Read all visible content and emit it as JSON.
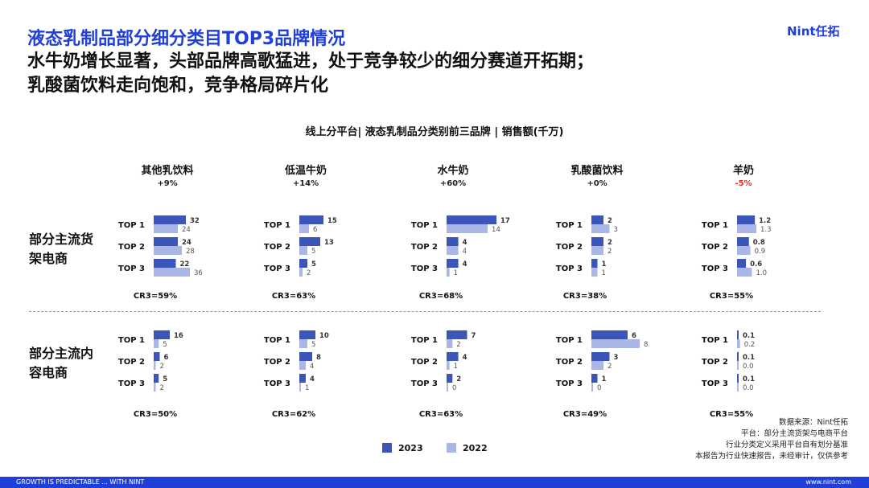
{
  "header": {
    "title": "液态乳制品部分细分类目TOP3品牌情况",
    "subtitle_line1": "水牛奶增长显著，头部品牌高歌猛进，处于竞争较少的细分赛道开拓期；",
    "subtitle_line2": "乳酸菌饮料走向饱和，竞争格局碎片化",
    "logo": "Nint任拓"
  },
  "chart_data": {
    "type": "bar",
    "title": "线上分平台| 液态乳制品分类别前三品牌 | 销售额(千万)",
    "row_labels": [
      "部分主流货架电商",
      "部分主流内容电商"
    ],
    "rank_labels": [
      "TOP 1",
      "TOP 2",
      "TOP 3"
    ],
    "legend": [
      {
        "name": "2023",
        "color": "#3b56b8"
      },
      {
        "name": "2022",
        "color": "#a9b6e6"
      }
    ],
    "categories": [
      {
        "name": "其他乳饮料",
        "growth": "+9%",
        "negative": false,
        "panels": [
          {
            "v2023": [
              32,
              24,
              22
            ],
            "v2022": [
              24,
              28,
              36
            ],
            "cr3": "CR3=59%"
          },
          {
            "v2023": [
              16,
              6,
              5
            ],
            "v2022": [
              5,
              2,
              2
            ],
            "cr3": "CR3=50%"
          }
        ]
      },
      {
        "name": "低温牛奶",
        "growth": "+14%",
        "negative": false,
        "panels": [
          {
            "v2023": [
              15,
              13,
              5
            ],
            "v2022": [
              6,
              5,
              2
            ],
            "cr3": "CR3=63%"
          },
          {
            "v2023": [
              10,
              8,
              4
            ],
            "v2022": [
              5,
              4,
              1
            ],
            "cr3": "CR3=62%"
          }
        ]
      },
      {
        "name": "水牛奶",
        "growth": "+60%",
        "negative": false,
        "panels": [
          {
            "v2023": [
              17,
              4,
              4
            ],
            "v2022": [
              14,
              4,
              1
            ],
            "cr3": "CR3=68%"
          },
          {
            "v2023": [
              7,
              4,
              2
            ],
            "v2022": [
              2,
              1,
              0
            ],
            "cr3": "CR3=63%"
          }
        ]
      },
      {
        "name": "乳酸菌饮料",
        "growth": "+0%",
        "negative": false,
        "panels": [
          {
            "v2023": [
              2,
              2,
              1
            ],
            "v2022": [
              3,
              2,
              1
            ],
            "cr3": "CR3=38%"
          },
          {
            "v2023": [
              6,
              3,
              1
            ],
            "v2022": [
              8,
              2,
              0
            ],
            "cr3": "CR3=49%"
          }
        ]
      },
      {
        "name": "羊奶",
        "growth": "-5%",
        "negative": true,
        "panels": [
          {
            "v2023": [
              1.2,
              0.8,
              0.6
            ],
            "v2022": [
              1.3,
              0.9,
              1.0
            ],
            "cr3": "CR3=55%",
            "decimals": 1
          },
          {
            "v2023": [
              0.1,
              0.1,
              0.1
            ],
            "v2022": [
              0.2,
              0.0,
              0.0
            ],
            "cr3": "CR3=55%",
            "decimals": 1
          }
        ]
      }
    ]
  },
  "source": {
    "line1": "数据来源：Nint任拓",
    "line2": "平台：部分主流货架与电商平台",
    "line3": "行业分类定义采用平台自有划分基准",
    "line4": "本报告为行业快速报告，未经审计，仅供参考"
  },
  "footer": {
    "left": "GROWTH IS PREDICTABLE ... WITH NINT",
    "right": "www.nint.com"
  }
}
